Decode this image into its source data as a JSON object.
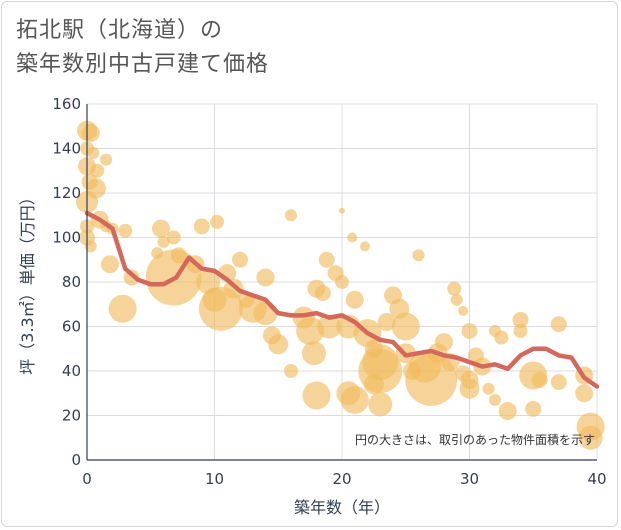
{
  "title": "拓北駅（北海道）の\n築年数別中古戸建て価格",
  "chart_data": {
    "type": "scatter+line",
    "xlabel": "築年数（年）",
    "ylabel": "坪（3.3㎡）単価（万円）",
    "xlim": [
      0,
      40
    ],
    "ylim": [
      0,
      160
    ],
    "x_ticks": [
      0,
      10,
      20,
      30,
      40
    ],
    "y_ticks": [
      0,
      20,
      40,
      60,
      80,
      100,
      120,
      140,
      160
    ],
    "grid": true,
    "annotation": "円の大きさは、取引のあった物件面積を示す",
    "colors": {
      "bubble": "#f0b95a",
      "line": "#d4685a"
    },
    "trend_line": {
      "x": [
        0,
        1,
        2,
        3,
        4,
        5,
        6,
        7,
        8,
        9,
        10,
        11,
        12,
        13,
        14,
        15,
        16,
        17,
        18,
        19,
        20,
        21,
        22,
        23,
        24,
        25,
        26,
        27,
        28,
        29,
        30,
        31,
        32,
        33,
        34,
        35,
        36,
        37,
        38,
        39,
        40
      ],
      "y": [
        111,
        108,
        104,
        86,
        81,
        79,
        79,
        82,
        91,
        86,
        85,
        81,
        76,
        74,
        72,
        66,
        65,
        65,
        66,
        64,
        65,
        62,
        57,
        54,
        53,
        47,
        48,
        49,
        47,
        46,
        44,
        42,
        43,
        41,
        47,
        50,
        50,
        47,
        46,
        37,
        33
      ]
    },
    "bubbles": [
      {
        "x": 0,
        "y": 148,
        "size": 10
      },
      {
        "x": 0.3,
        "y": 147,
        "size": 9
      },
      {
        "x": 0,
        "y": 140,
        "size": 7
      },
      {
        "x": 0.5,
        "y": 138,
        "size": 6
      },
      {
        "x": 1.5,
        "y": 135,
        "size": 6
      },
      {
        "x": 0,
        "y": 132,
        "size": 9
      },
      {
        "x": 0.8,
        "y": 130,
        "size": 7
      },
      {
        "x": 0.2,
        "y": 125,
        "size": 8
      },
      {
        "x": 0.7,
        "y": 122,
        "size": 10
      },
      {
        "x": 0,
        "y": 116,
        "size": 11
      },
      {
        "x": 1,
        "y": 108,
        "size": 9
      },
      {
        "x": 0,
        "y": 105,
        "size": 7
      },
      {
        "x": 1.5,
        "y": 105,
        "size": 6
      },
      {
        "x": 0,
        "y": 100,
        "size": 8
      },
      {
        "x": 0.3,
        "y": 96,
        "size": 6
      },
      {
        "x": 2,
        "y": 104,
        "size": 6
      },
      {
        "x": 3,
        "y": 103,
        "size": 7
      },
      {
        "x": 1.8,
        "y": 88,
        "size": 9
      },
      {
        "x": 3.5,
        "y": 82,
        "size": 8
      },
      {
        "x": 2.8,
        "y": 68,
        "size": 14
      },
      {
        "x": 5.8,
        "y": 104,
        "size": 9
      },
      {
        "x": 6.8,
        "y": 100,
        "size": 7
      },
      {
        "x": 6,
        "y": 98,
        "size": 6
      },
      {
        "x": 5.5,
        "y": 93,
        "size": 6
      },
      {
        "x": 9,
        "y": 105,
        "size": 8
      },
      {
        "x": 10.2,
        "y": 107,
        "size": 7
      },
      {
        "x": 7.2,
        "y": 92,
        "size": 8
      },
      {
        "x": 6.8,
        "y": 82,
        "size": 28
      },
      {
        "x": 8.5,
        "y": 88,
        "size": 9
      },
      {
        "x": 9.5,
        "y": 80,
        "size": 12
      },
      {
        "x": 10,
        "y": 72,
        "size": 12
      },
      {
        "x": 10.5,
        "y": 68,
        "size": 22
      },
      {
        "x": 11,
        "y": 84,
        "size": 9
      },
      {
        "x": 12,
        "y": 90,
        "size": 8
      },
      {
        "x": 11.5,
        "y": 77,
        "size": 10
      },
      {
        "x": 12.5,
        "y": 72,
        "size": 8
      },
      {
        "x": 13,
        "y": 68,
        "size": 14
      },
      {
        "x": 14,
        "y": 82,
        "size": 9
      },
      {
        "x": 14,
        "y": 66,
        "size": 12
      },
      {
        "x": 14.5,
        "y": 56,
        "size": 9
      },
      {
        "x": 15,
        "y": 52,
        "size": 10
      },
      {
        "x": 16,
        "y": 110,
        "size": 6
      },
      {
        "x": 16,
        "y": 40,
        "size": 7
      },
      {
        "x": 17,
        "y": 64,
        "size": 11
      },
      {
        "x": 17.5,
        "y": 58,
        "size": 14
      },
      {
        "x": 18,
        "y": 77,
        "size": 9
      },
      {
        "x": 18.5,
        "y": 75,
        "size": 8
      },
      {
        "x": 17.8,
        "y": 48,
        "size": 12
      },
      {
        "x": 18.8,
        "y": 90,
        "size": 8
      },
      {
        "x": 19.5,
        "y": 84,
        "size": 8
      },
      {
        "x": 20,
        "y": 80,
        "size": 7
      },
      {
        "x": 19,
        "y": 60,
        "size": 12
      },
      {
        "x": 18,
        "y": 29,
        "size": 14
      },
      {
        "x": 20,
        "y": 112,
        "size": 3
      },
      {
        "x": 20.8,
        "y": 100,
        "size": 5
      },
      {
        "x": 21.8,
        "y": 96,
        "size": 5
      },
      {
        "x": 21,
        "y": 72,
        "size": 9
      },
      {
        "x": 20.5,
        "y": 60,
        "size": 12
      },
      {
        "x": 20.5,
        "y": 30,
        "size": 12
      },
      {
        "x": 21,
        "y": 27,
        "size": 14
      },
      {
        "x": 22,
        "y": 57,
        "size": 14
      },
      {
        "x": 22.5,
        "y": 50,
        "size": 9
      },
      {
        "x": 23,
        "y": 44,
        "size": 18
      },
      {
        "x": 23,
        "y": 40,
        "size": 22
      },
      {
        "x": 22.5,
        "y": 34,
        "size": 10
      },
      {
        "x": 23,
        "y": 25,
        "size": 12
      },
      {
        "x": 23.5,
        "y": 62,
        "size": 9
      },
      {
        "x": 24,
        "y": 74,
        "size": 9
      },
      {
        "x": 24.5,
        "y": 68,
        "size": 10
      },
      {
        "x": 25,
        "y": 60,
        "size": 14
      },
      {
        "x": 25,
        "y": 48,
        "size": 10
      },
      {
        "x": 25.5,
        "y": 40,
        "size": 9
      },
      {
        "x": 26,
        "y": 92,
        "size": 6
      },
      {
        "x": 26.5,
        "y": 42,
        "size": 16
      },
      {
        "x": 27,
        "y": 36,
        "size": 26
      },
      {
        "x": 27.5,
        "y": 48,
        "size": 10
      },
      {
        "x": 28,
        "y": 53,
        "size": 9
      },
      {
        "x": 28.8,
        "y": 77,
        "size": 7
      },
      {
        "x": 29,
        "y": 72,
        "size": 6
      },
      {
        "x": 28.5,
        "y": 44,
        "size": 9
      },
      {
        "x": 29.5,
        "y": 39,
        "size": 8
      },
      {
        "x": 30,
        "y": 36,
        "size": 9
      },
      {
        "x": 30,
        "y": 32,
        "size": 10
      },
      {
        "x": 29.5,
        "y": 67,
        "size": 5
      },
      {
        "x": 30,
        "y": 58,
        "size": 8
      },
      {
        "x": 30.5,
        "y": 47,
        "size": 8
      },
      {
        "x": 31,
        "y": 42,
        "size": 9
      },
      {
        "x": 31.5,
        "y": 32,
        "size": 6
      },
      {
        "x": 32,
        "y": 27,
        "size": 6
      },
      {
        "x": 32,
        "y": 58,
        "size": 6
      },
      {
        "x": 32.5,
        "y": 55,
        "size": 7
      },
      {
        "x": 33,
        "y": 22,
        "size": 9
      },
      {
        "x": 34,
        "y": 63,
        "size": 8
      },
      {
        "x": 34,
        "y": 58,
        "size": 7
      },
      {
        "x": 35,
        "y": 38,
        "size": 14
      },
      {
        "x": 35.5,
        "y": 36,
        "size": 8
      },
      {
        "x": 35,
        "y": 23,
        "size": 8
      },
      {
        "x": 37,
        "y": 61,
        "size": 8
      },
      {
        "x": 37,
        "y": 35,
        "size": 8
      },
      {
        "x": 39,
        "y": 38,
        "size": 9
      },
      {
        "x": 39,
        "y": 30,
        "size": 9
      },
      {
        "x": 39.5,
        "y": 15,
        "size": 14
      },
      {
        "x": 39.5,
        "y": 10,
        "size": 12
      }
    ]
  }
}
